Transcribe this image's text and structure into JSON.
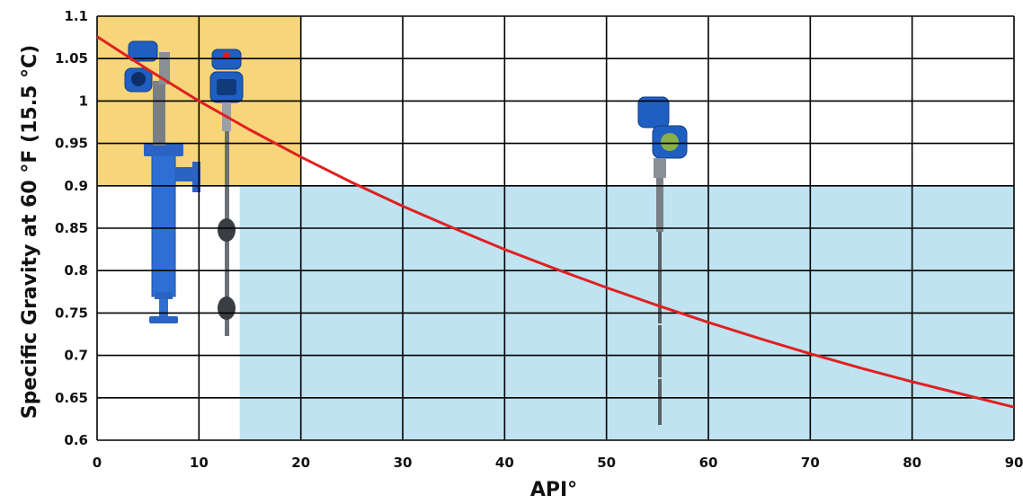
{
  "chart_data": {
    "type": "line",
    "title": "",
    "xlabel": "API°",
    "ylabel": "Specific Gravity at 60 °F (15.5 °C)",
    "xlim": [
      0,
      90
    ],
    "ylim": [
      0.6,
      1.1
    ],
    "x_ticks": [
      0,
      10,
      20,
      30,
      40,
      50,
      60,
      70,
      80,
      90
    ],
    "y_ticks": [
      0.6,
      0.65,
      0.7,
      0.75,
      0.8,
      0.85,
      0.9,
      0.95,
      1,
      1.05,
      1.1
    ],
    "x_tick_labels": [
      "0",
      "10",
      "20",
      "30",
      "40",
      "50",
      "60",
      "70",
      "80",
      "90"
    ],
    "y_tick_labels": [
      "0.6",
      "0.65",
      "0.7",
      "0.75",
      "0.8",
      "0.85",
      "0.9",
      "0.95",
      "1",
      "1.05",
      "1.1"
    ],
    "grid": true,
    "regions": [
      {
        "x": [
          0,
          20
        ],
        "y": [
          0.9,
          1.1
        ],
        "color": "#f7d57a"
      },
      {
        "x": [
          14,
          90
        ],
        "y": [
          0.6,
          0.9
        ],
        "color": "#bfe3f1"
      }
    ],
    "series": [
      {
        "color": "#e02020",
        "x": [
          0,
          5,
          10,
          15,
          20,
          25,
          30,
          35,
          40,
          45,
          50,
          55,
          60,
          65,
          70,
          75,
          80,
          85,
          90
        ],
        "y": [
          1.076,
          1.037,
          1.0,
          0.966,
          0.934,
          0.904,
          0.876,
          0.85,
          0.825,
          0.802,
          0.78,
          0.759,
          0.739,
          0.72,
          0.702,
          0.685,
          0.669,
          0.654,
          0.639
        ]
      }
    ]
  }
}
